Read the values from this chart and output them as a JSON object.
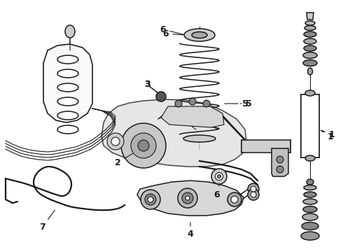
{
  "bg_color": "#ffffff",
  "fig_width": 4.9,
  "fig_height": 3.6,
  "dpi": 100,
  "image_b64": ""
}
